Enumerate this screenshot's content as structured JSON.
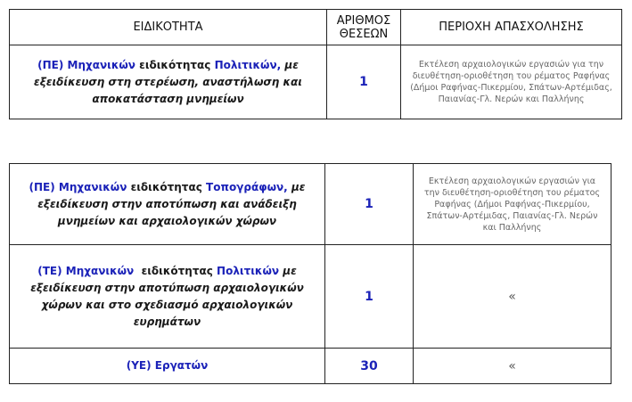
{
  "headers": {
    "specialty": "ΕΙΔΙΚΟΤΗΤΑ",
    "positions_line1": "ΑΡΙΘΜΟΣ",
    "positions_line2": "ΘΕΣΕΩΝ",
    "area": "ΠΕΡΙΟΧΗ ΑΠΑΣΧΟΛΗΣΗΣ"
  },
  "area_text": "Εκτέλεση αρχαιολογικών εργασιών για την διευθέτηση-οριοθέτηση του ρέματος Ραφήνας (Δήμοι Ραφήνας-Πικερμίου, Σπάτων-Αρτέμιδας, Παιανίας-Γλ. Νερών και Παλλήνης",
  "ditto": "«",
  "rows": [
    {
      "level": "(ΠΕ) Μηχανικών",
      "word": "ειδικότητας",
      "field": "Πολιτικών,",
      "rest": "με εξειδίκευση στη στερέωση, αναστήλωση και αποκατάσταση μνημείων",
      "positions": "1"
    },
    {
      "level": "(ΠΕ) Μηχανικών",
      "word": "ειδικότητας",
      "field": "Τοπογράφων,",
      "rest": "με εξειδίκευση στην αποτύπωση και ανάδειξη μνημείων και αρχαιολογικών χώρων",
      "positions": "1"
    },
    {
      "level": "(ΤΕ) Μηχανικών",
      "word": "ειδικότητας",
      "field": "Πολιτικών",
      "rest": "με εξειδίκευση στην αποτύπωση αρχαιολογικών χώρων και στο σχεδιασμό αρχαιολογικών ευρημάτων",
      "positions": "1"
    },
    {
      "level": "(ΥΕ) Εργατών",
      "positions": "30"
    }
  ]
}
